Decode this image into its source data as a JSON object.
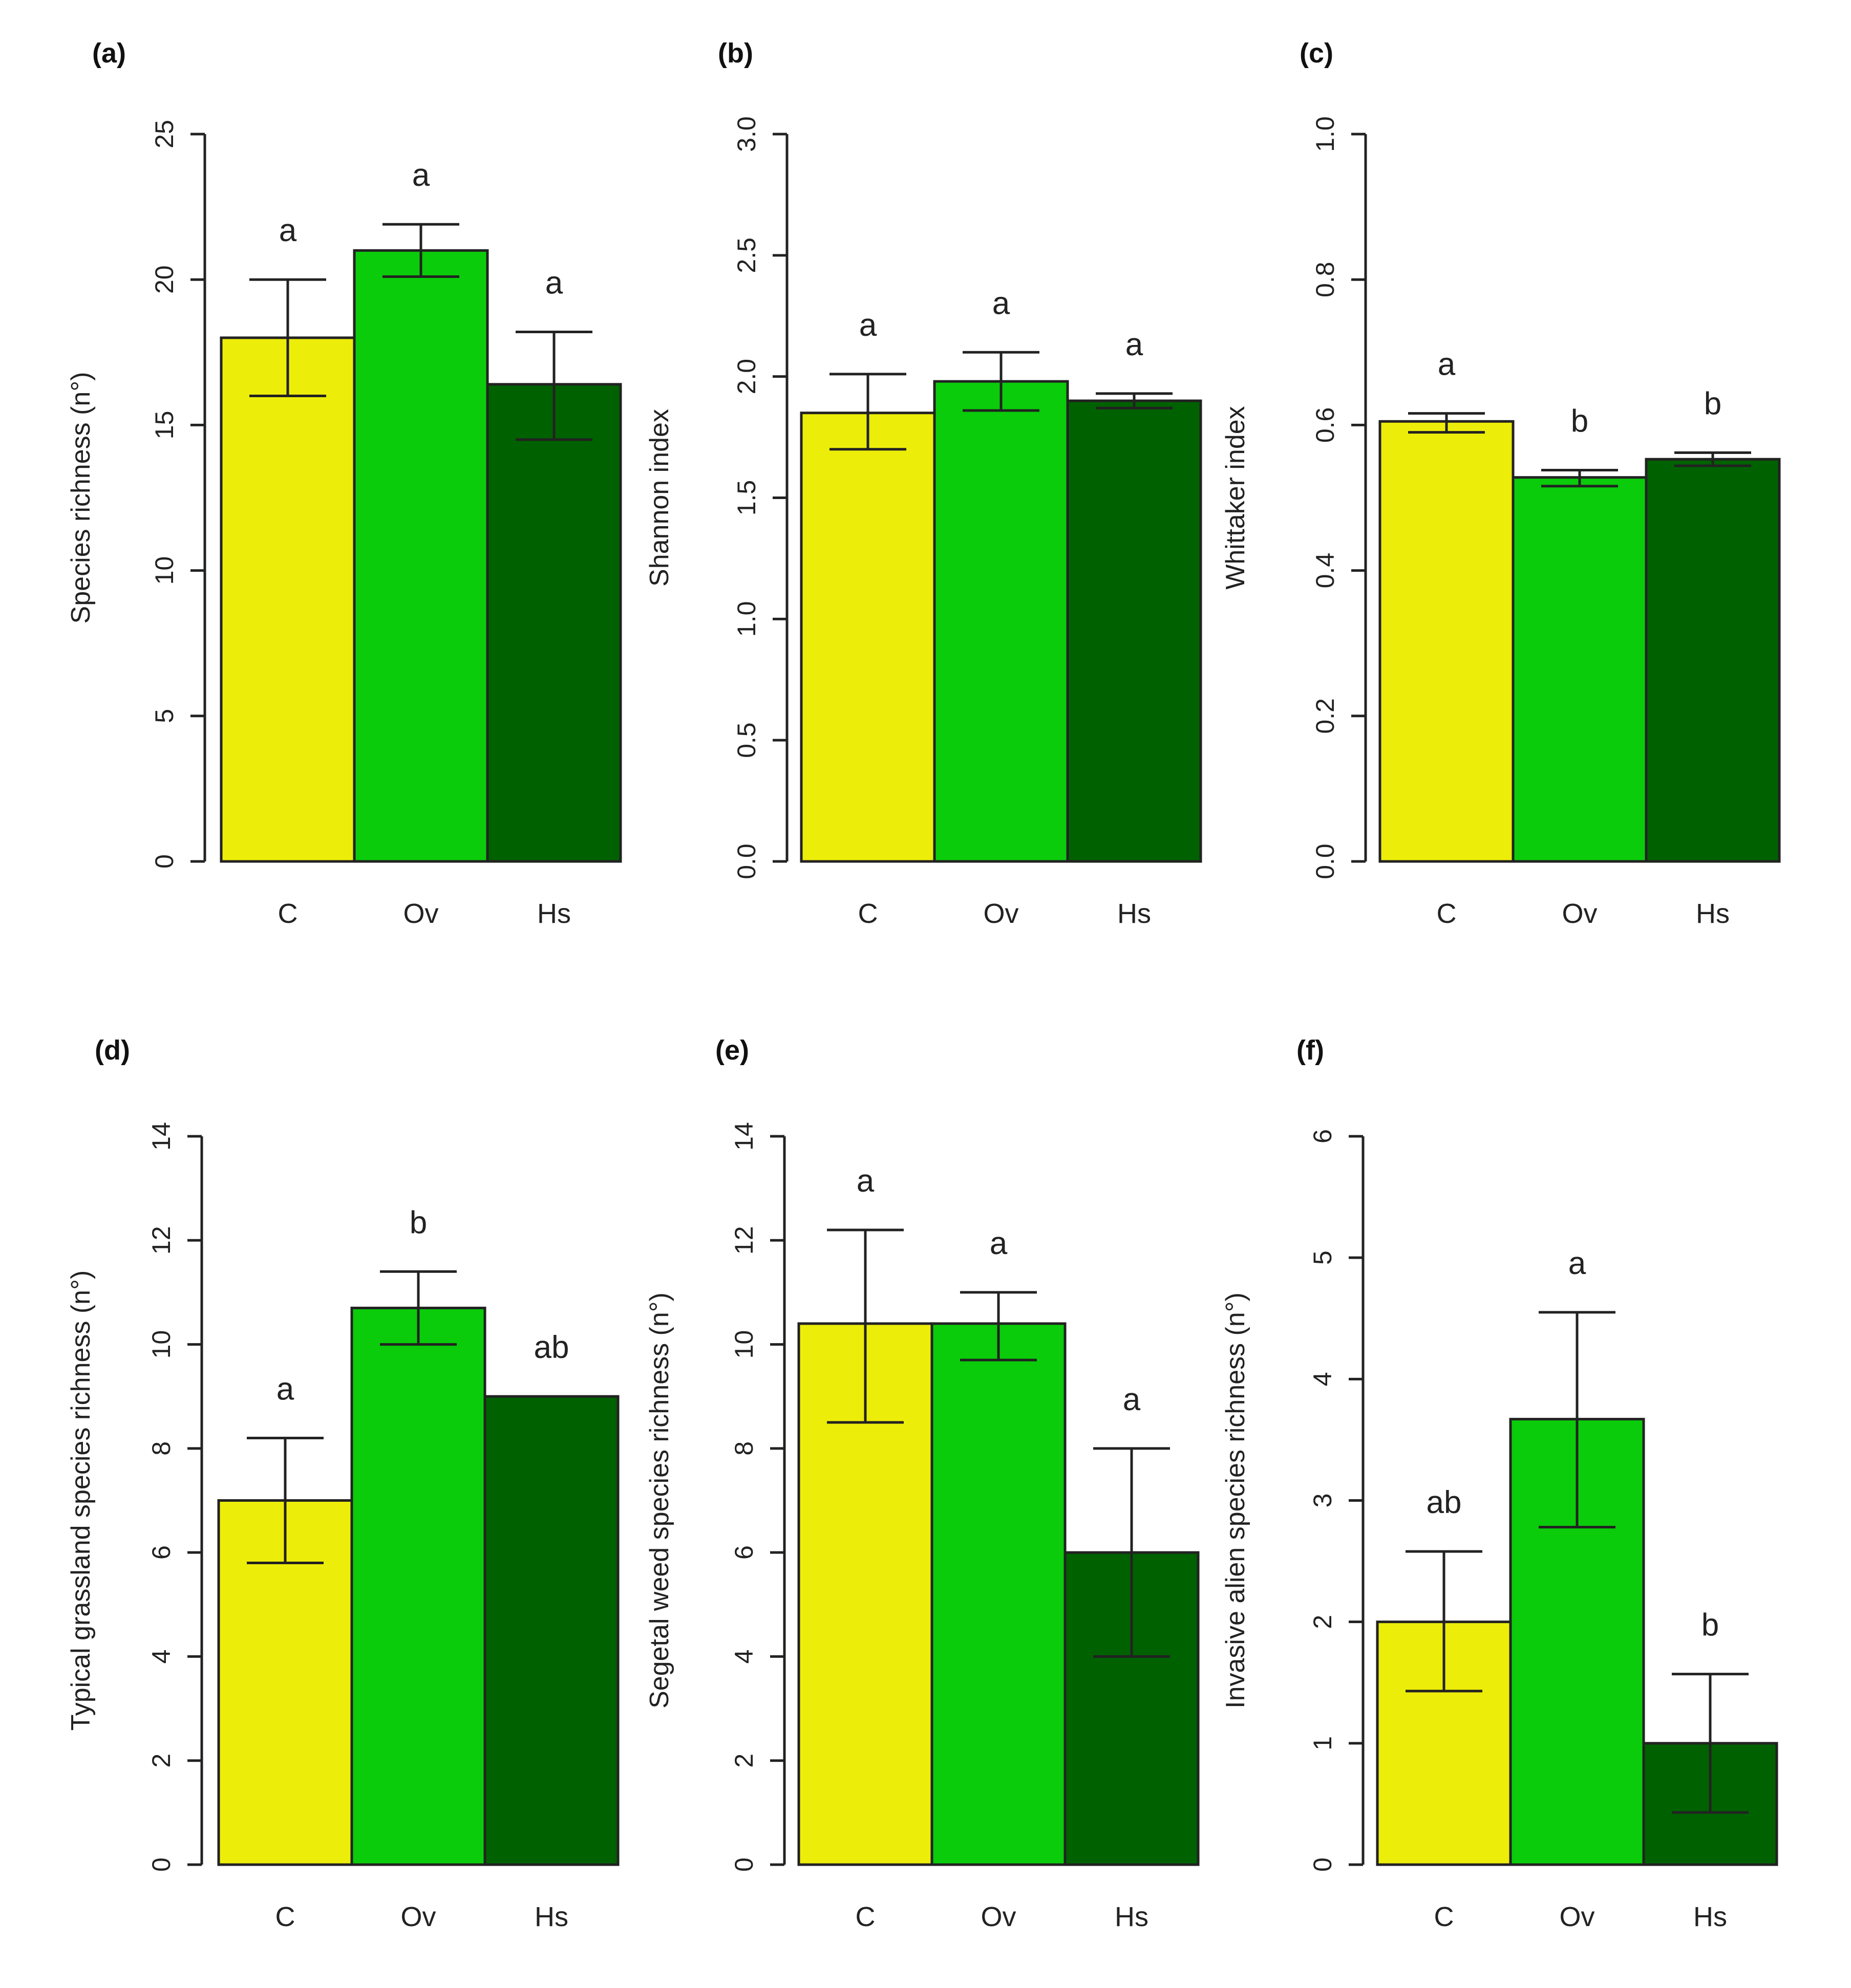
{
  "colors": {
    "C": "#eded0a",
    "Ov": "#0acc0a",
    "Hs": "#006100",
    "axis": "#222222"
  },
  "chart_data": [
    {
      "type": "bar",
      "panel": "(a)",
      "ylabel": "Species richness (n°)",
      "categories": [
        "C",
        "Ov",
        "Hs"
      ],
      "values": [
        18,
        21,
        16.4
      ],
      "error_low": [
        16,
        20.1,
        14.5
      ],
      "error_high": [
        20,
        21.9,
        18.2
      ],
      "significance": [
        "a",
        "a",
        "a"
      ],
      "ylim": [
        0,
        25
      ],
      "ticks": [
        0,
        5,
        10,
        15,
        20,
        25
      ],
      "tick_labels": [
        "0",
        "5",
        "10",
        "15",
        "20",
        "25"
      ]
    },
    {
      "type": "bar",
      "panel": "(b)",
      "ylabel": "Shannon index",
      "categories": [
        "C",
        "Ov",
        "Hs"
      ],
      "values": [
        1.85,
        1.98,
        1.9
      ],
      "error_low": [
        1.7,
        1.86,
        1.87
      ],
      "error_high": [
        2.01,
        2.1,
        1.93
      ],
      "significance": [
        "a",
        "a",
        "a"
      ],
      "ylim": [
        0,
        3.0
      ],
      "ticks": [
        0,
        0.5,
        1.0,
        1.5,
        2.0,
        2.5,
        3.0
      ],
      "tick_labels": [
        "0.0",
        "0.5",
        "1.0",
        "1.5",
        "2.0",
        "2.5",
        "3.0"
      ]
    },
    {
      "type": "bar",
      "panel": "(c)",
      "ylabel": "Whittaker index",
      "categories": [
        "C",
        "Ov",
        "Hs"
      ],
      "values": [
        0.605,
        0.528,
        0.553
      ],
      "error_low": [
        0.59,
        0.516,
        0.544
      ],
      "error_high": [
        0.616,
        0.538,
        0.562
      ],
      "significance": [
        "a",
        "b",
        "b"
      ],
      "ylim": [
        0,
        1.0
      ],
      "ticks": [
        0,
        0.2,
        0.4,
        0.6,
        0.8,
        1.0
      ],
      "tick_labels": [
        "0.0",
        "0.2",
        "0.4",
        "0.6",
        "0.8",
        "1.0"
      ]
    },
    {
      "type": "bar",
      "panel": "(d)",
      "ylabel": "Typical grassland species richness (n°)",
      "categories": [
        "C",
        "Ov",
        "Hs"
      ],
      "values": [
        7.0,
        10.7,
        9.0
      ],
      "error_low": [
        5.8,
        10.0,
        null
      ],
      "error_high": [
        8.2,
        11.4,
        null
      ],
      "significance": [
        "a",
        "b",
        "ab"
      ],
      "ylim": [
        0,
        14
      ],
      "ticks": [
        0,
        2,
        4,
        6,
        8,
        10,
        12,
        14
      ],
      "tick_labels": [
        "0",
        "2",
        "4",
        "6",
        "8",
        "10",
        "12",
        "14"
      ]
    },
    {
      "type": "bar",
      "panel": "(e)",
      "ylabel": "Segetal weed species richness (n°)",
      "categories": [
        "C",
        "Ov",
        "Hs"
      ],
      "values": [
        10.4,
        10.4,
        6.0
      ],
      "error_low": [
        8.5,
        9.7,
        4.0
      ],
      "error_high": [
        12.2,
        11.0,
        8.0
      ],
      "significance": [
        "a",
        "a",
        "a"
      ],
      "ylim": [
        0,
        14
      ],
      "ticks": [
        0,
        2,
        4,
        6,
        8,
        10,
        12,
        14
      ],
      "tick_labels": [
        "0",
        "2",
        "4",
        "6",
        "8",
        "10",
        "12",
        "14"
      ]
    },
    {
      "type": "bar",
      "panel": "(f)",
      "ylabel": "Invasive alien species richness (n°)",
      "categories": [
        "C",
        "Ov",
        "Hs"
      ],
      "values": [
        2.0,
        3.67,
        1.0
      ],
      "error_low": [
        1.43,
        2.78,
        0.43
      ],
      "error_high": [
        2.58,
        4.55,
        1.57
      ],
      "significance": [
        "ab",
        "a",
        "b"
      ],
      "ylim": [
        0,
        6
      ],
      "ticks": [
        0,
        1,
        2,
        3,
        4,
        5,
        6
      ],
      "tick_labels": [
        "0",
        "1",
        "2",
        "3",
        "4",
        "5",
        "6"
      ]
    }
  ]
}
